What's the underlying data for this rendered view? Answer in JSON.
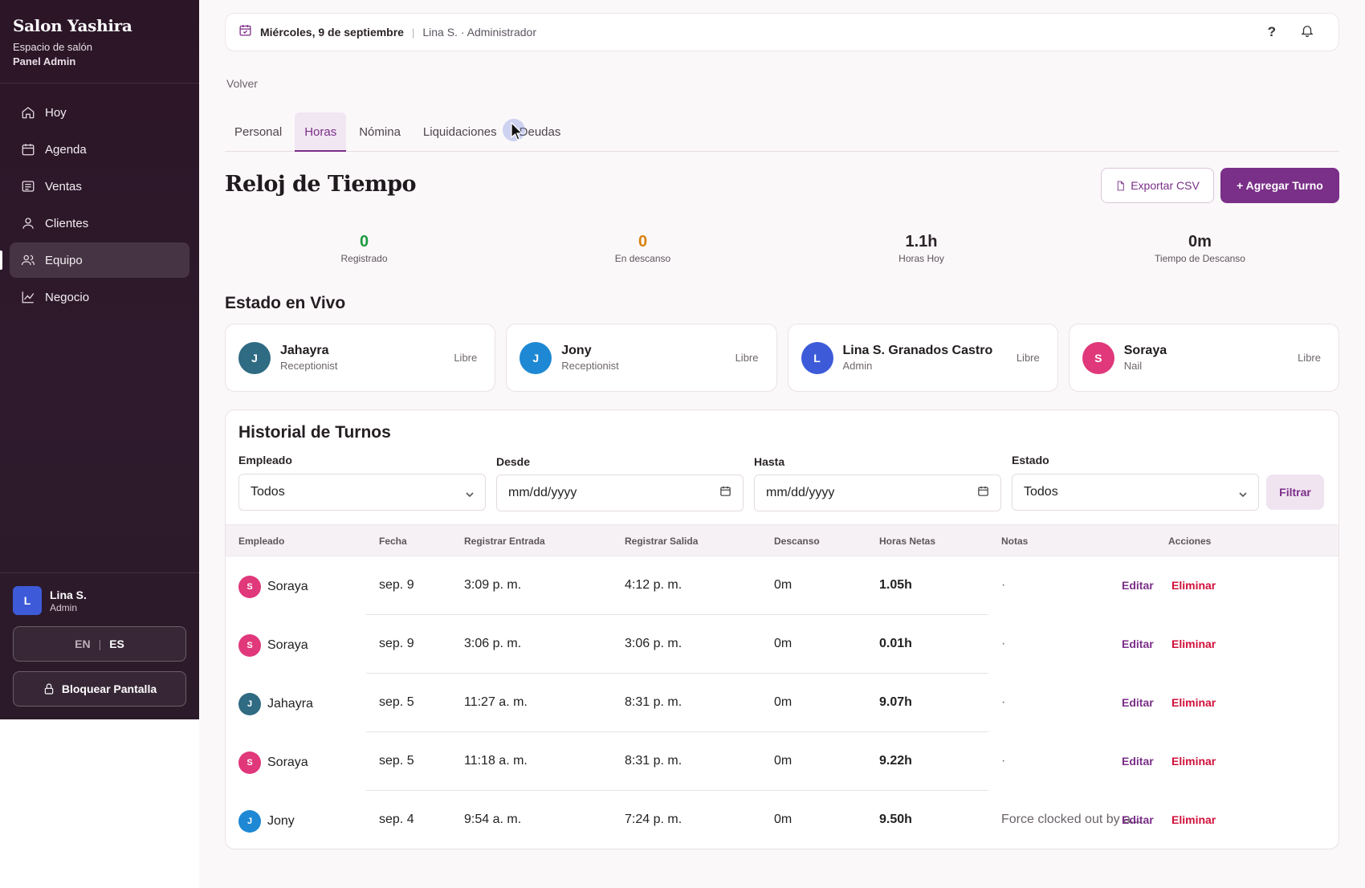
{
  "sidebar": {
    "brand_title": "Salon Yashira",
    "brand_sub": "Espacio de salón",
    "brand_panel": "Panel Admin",
    "items": [
      {
        "label": "Hoy",
        "icon": "home-icon"
      },
      {
        "label": "Agenda",
        "icon": "calendar-icon"
      },
      {
        "label": "Ventas",
        "icon": "receipt-icon"
      },
      {
        "label": "Clientes",
        "icon": "user-icon"
      },
      {
        "label": "Equipo",
        "icon": "users-icon",
        "active": true
      },
      {
        "label": "Negocio",
        "icon": "chart-line-icon"
      }
    ],
    "user": {
      "initial": "L",
      "name": "Lina S.",
      "role": "Admin"
    },
    "lang": {
      "en": "EN",
      "sep": "|",
      "es": "ES",
      "selected": "ES"
    },
    "lock_label": "Bloquear Pantalla"
  },
  "topbar": {
    "date": "Miércoles, 9 de septiembre",
    "sep": "|",
    "user": "Lina S. · Administrador",
    "help": "?"
  },
  "back_label": "Volver",
  "tabs": [
    {
      "label": "Personal"
    },
    {
      "label": "Horas",
      "active": true
    },
    {
      "label": "Nómina"
    },
    {
      "label": "Liquidaciones"
    },
    {
      "label": "Deudas"
    }
  ],
  "page_title": "Reloj de Tiempo",
  "actions": {
    "export_label": "Exportar CSV",
    "add_label": "+ Agregar Turno"
  },
  "stats": [
    {
      "value": "0",
      "label": "Registrado",
      "color": "#1c9a3f"
    },
    {
      "value": "0",
      "label": "En descanso",
      "color": "#d9820c"
    },
    {
      "value": "1.1h",
      "label": "Horas Hoy",
      "color": "#2a2428"
    },
    {
      "value": "0m",
      "label": "Tiempo de Descanso",
      "color": "#2a2428"
    }
  ],
  "live": {
    "title": "Estado en Vivo",
    "cards": [
      {
        "initial": "J",
        "name": "Jahayra",
        "role": "Receptionist",
        "status": "Libre",
        "color": "#2f6b82"
      },
      {
        "initial": "J",
        "name": "Jony",
        "role": "Receptionist",
        "status": "Libre",
        "color": "#1e88d4"
      },
      {
        "initial": "L",
        "name": "Lina S. Granados Castro",
        "role": "Admin",
        "status": "Libre",
        "color": "#3d5bd9"
      },
      {
        "initial": "S",
        "name": "Soraya",
        "role": "Nail",
        "status": "Libre",
        "color": "#e0387a"
      }
    ]
  },
  "history": {
    "title": "Historial de Turnos",
    "filters": {
      "employee_label": "Empleado",
      "employee_value": "Todos",
      "from_label": "Desde",
      "from_value": "mm/dd/yyyy",
      "to_label": "Hasta",
      "to_value": "mm/dd/yyyy",
      "state_label": "Estado",
      "state_value": "Todos",
      "filter_button": "Filtrar"
    },
    "columns": [
      "Empleado",
      "Fecha",
      "Registrar Entrada",
      "Registrar Salida",
      "Descanso",
      "Horas Netas",
      "Notas",
      "Acciones"
    ],
    "edit_label": "Editar",
    "delete_label": "Eliminar",
    "rows": [
      {
        "initial": "S",
        "employee": "Soraya",
        "date": "sep. 9",
        "in": "3:09 p. m.",
        "out": "4:12 p. m.",
        "break": "0m",
        "net": "1.05h",
        "notes": "·",
        "color": "#e0387a"
      },
      {
        "initial": "S",
        "employee": "Soraya",
        "date": "sep. 9",
        "in": "3:06 p. m.",
        "out": "3:06 p. m.",
        "break": "0m",
        "net": "0.01h",
        "notes": "·",
        "color": "#e0387a"
      },
      {
        "initial": "J",
        "employee": "Jahayra",
        "date": "sep. 5",
        "in": "11:27 a. m.",
        "out": "8:31 p. m.",
        "break": "0m",
        "net": "9.07h",
        "notes": "·",
        "color": "#2f6b82"
      },
      {
        "initial": "S",
        "employee": "Soraya",
        "date": "sep. 5",
        "in": "11:18 a. m.",
        "out": "8:31 p. m.",
        "break": "0m",
        "net": "9.22h",
        "notes": "·",
        "color": "#e0387a"
      },
      {
        "initial": "J",
        "employee": "Jony",
        "date": "sep. 4",
        "in": "9:54 a. m.",
        "out": "7:24 p. m.",
        "break": "0m",
        "net": "9.50h",
        "notes": "Force clocked out by a...",
        "color": "#1e88d4"
      }
    ]
  }
}
